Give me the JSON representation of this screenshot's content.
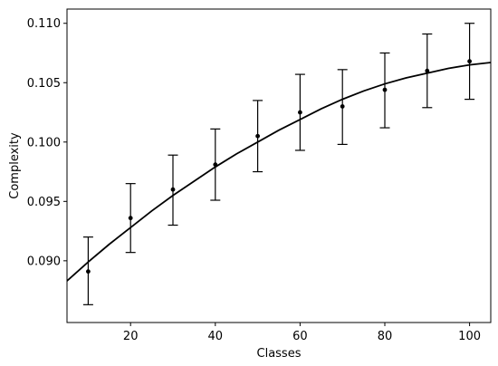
{
  "chart_data": {
    "type": "scatter",
    "title": "",
    "xlabel": "Classes",
    "ylabel": "Complexity",
    "xlim": [
      5,
      105
    ],
    "ylim": [
      0.0848,
      0.1112
    ],
    "xticks": [
      20,
      40,
      60,
      80,
      100
    ],
    "xtick_labels": [
      "20",
      "40",
      "60",
      "80",
      "100"
    ],
    "yticks": [
      0.09,
      0.095,
      0.1,
      0.105,
      0.11
    ],
    "ytick_labels": [
      "0.090",
      "0.095",
      "0.100",
      "0.105",
      "0.110"
    ],
    "grid": false,
    "legend": "none",
    "points": {
      "x": [
        10,
        20,
        30,
        40,
        50,
        60,
        70,
        80,
        90,
        100
      ],
      "y": [
        0.0891,
        0.0936,
        0.096,
        0.0981,
        0.1005,
        0.1025,
        0.103,
        0.1044,
        0.106,
        0.1068
      ],
      "err_low": [
        0.0863,
        0.0907,
        0.093,
        0.0951,
        0.0975,
        0.0993,
        0.0998,
        0.1012,
        0.1029,
        0.1036
      ],
      "err_high": [
        0.092,
        0.0965,
        0.0989,
        0.1011,
        0.1035,
        0.1057,
        0.1061,
        0.1075,
        0.1091,
        0.11
      ]
    },
    "fit_curve": {
      "x": [
        5,
        10,
        15,
        20,
        25,
        30,
        35,
        40,
        45,
        50,
        55,
        60,
        65,
        70,
        75,
        80,
        85,
        90,
        95,
        100,
        105
      ],
      "y": [
        0.0883,
        0.0899,
        0.0914,
        0.0928,
        0.0942,
        0.0955,
        0.0967,
        0.0979,
        0.099,
        0.1,
        0.101,
        0.1019,
        0.1028,
        0.1036,
        0.1043,
        0.1049,
        0.1054,
        0.1058,
        0.1062,
        0.1065,
        0.1067
      ]
    },
    "colors": {
      "line": "#000000",
      "points": "#000000",
      "errorbars": "#000000",
      "axes": "#000000"
    }
  }
}
